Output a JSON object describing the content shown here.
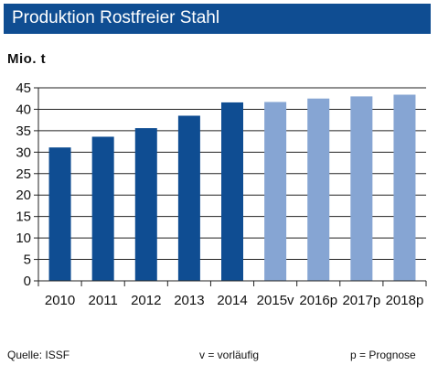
{
  "header": {
    "title": "Produktion Rostfreier Stahl"
  },
  "unit_label": "Mio. t",
  "footer": {
    "source": "Quelle:  ISSF",
    "legend_v": "v = vorläufig",
    "legend_p": "p = Prognose"
  },
  "colors": {
    "title_background": "#0f4d92",
    "actual_bars": "#0f4d92",
    "forecast_bars": "#86a5d3"
  },
  "chart_data": {
    "type": "bar",
    "title": "Produktion Rostfreier Stahl",
    "ylabel": "Mio. t",
    "xlabel": "",
    "categories": [
      "2010",
      "2011",
      "2012",
      "2013",
      "2014",
      "2015v",
      "2016p",
      "2017p",
      "2018p"
    ],
    "values": [
      31.1,
      33.6,
      35.6,
      38.5,
      41.6,
      41.7,
      42.5,
      43.0,
      43.4
    ],
    "bar_kind": [
      "actual",
      "actual",
      "actual",
      "actual",
      "actual",
      "forecast",
      "forecast",
      "forecast",
      "forecast"
    ],
    "ylim": [
      0,
      45
    ],
    "yticks": [
      0,
      5,
      10,
      15,
      20,
      25,
      30,
      35,
      40,
      45
    ],
    "grid": true,
    "legend": "none"
  }
}
